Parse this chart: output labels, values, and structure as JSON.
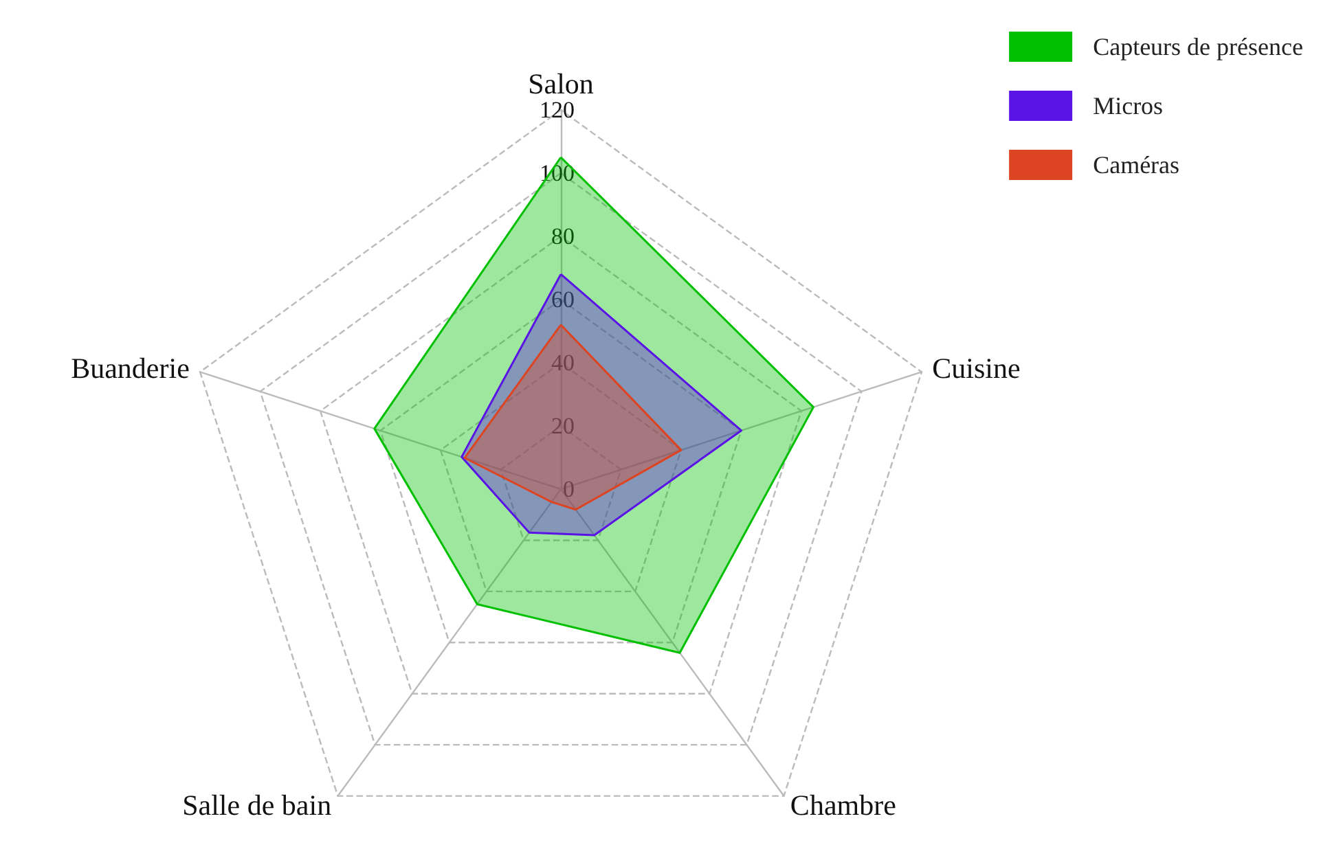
{
  "chart_data": {
    "type": "radar",
    "categories": [
      "Salon",
      "Cuisine",
      "Chambre",
      "Salle de bain",
      "Buanderie"
    ],
    "ylim": [
      0,
      120
    ],
    "yticks": [
      0,
      20,
      40,
      60,
      80,
      100,
      120
    ],
    "grid": true,
    "legend": "top right",
    "series": [
      {
        "name": "Capteurs de présence",
        "color": "#00c000",
        "values": [
          105,
          84,
          64,
          45,
          62
        ]
      },
      {
        "name": "Micros",
        "color": "#5a14e6",
        "values": [
          68,
          60,
          18,
          17,
          33
        ]
      },
      {
        "name": "Caméras",
        "color": "#dd4422",
        "values": [
          52,
          40,
          8,
          5,
          32
        ]
      }
    ]
  }
}
